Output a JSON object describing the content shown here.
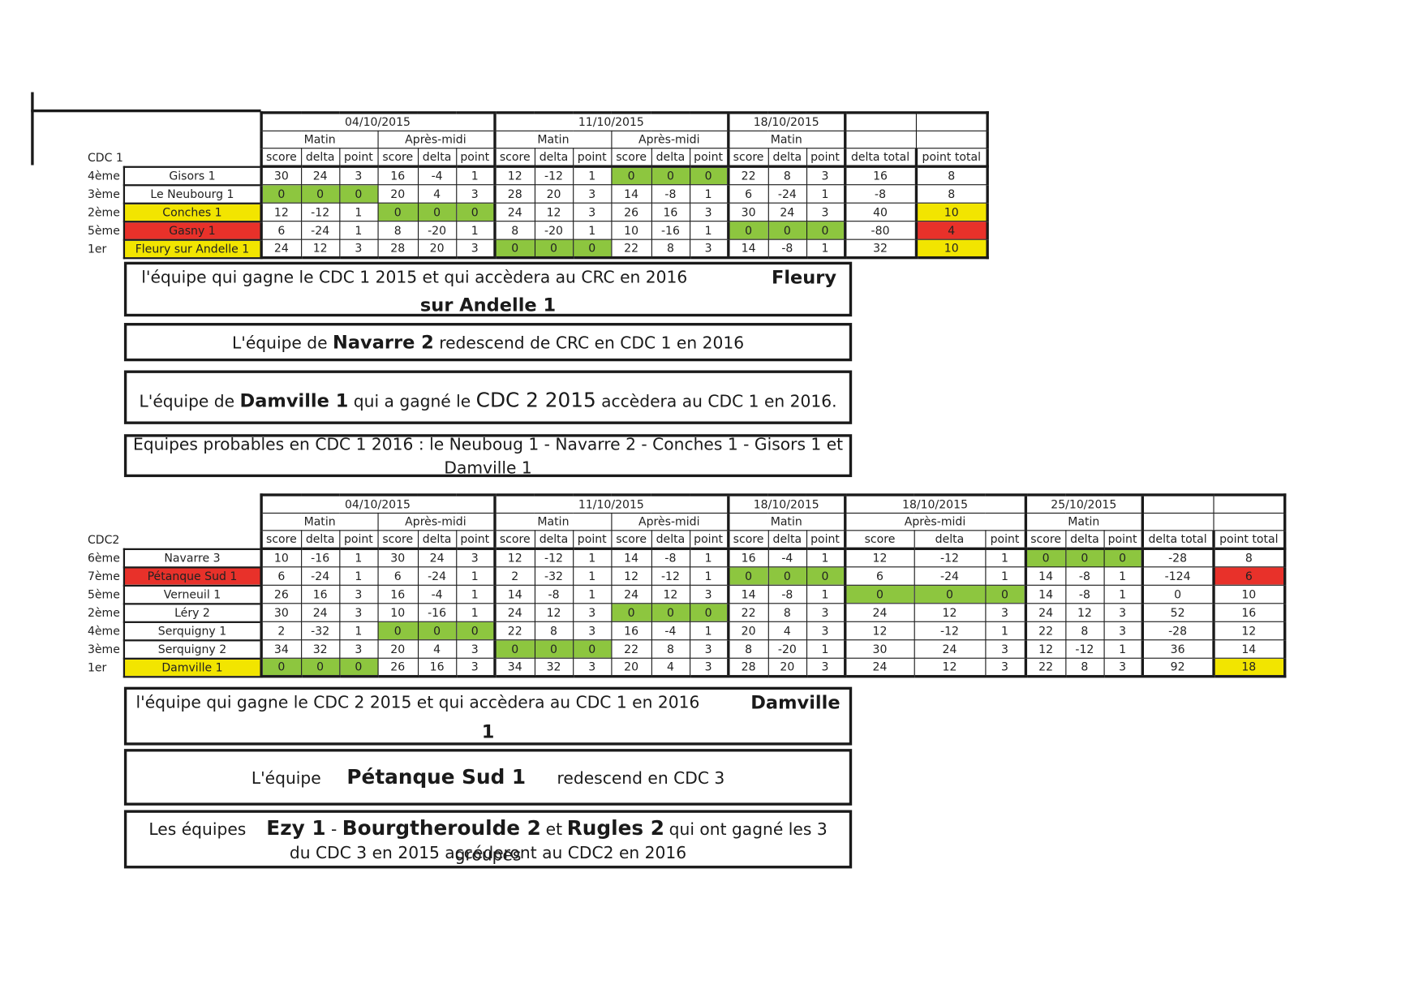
{
  "cdc1": {
    "label": "CDC 1",
    "dates": [
      "04/10/2015",
      "11/10/2015",
      "18/10/2015"
    ],
    "sessions": [
      "Matin",
      "Après-midi",
      "Matin",
      "Après-midi",
      "Matin"
    ],
    "col_headers": [
      "score",
      "delta",
      "point",
      "score",
      "delta",
      "point",
      "score",
      "delta",
      "point",
      "score",
      "delta",
      "point",
      "score",
      "delta",
      "point",
      "delta total",
      "point total"
    ],
    "rows": [
      {
        "rank": "4ème",
        "team": "Gisors 1",
        "values": [
          "30",
          "24",
          "3",
          "16",
          "-4",
          "1",
          "12",
          "-12",
          "1",
          "0",
          "0",
          "0",
          "22",
          "8",
          "3",
          "16",
          "8"
        ]
      },
      {
        "rank": "3ème",
        "team": "Le Neubourg 1",
        "values": [
          "0",
          "0",
          "0",
          "20",
          "4",
          "3",
          "28",
          "20",
          "3",
          "14",
          "-8",
          "1",
          "6",
          "-24",
          "1",
          "-8",
          "8"
        ]
      },
      {
        "rank": "2ème",
        "team": "Conches 1",
        "values": [
          "12",
          "-12",
          "1",
          "0",
          "0",
          "0",
          "24",
          "12",
          "3",
          "26",
          "16",
          "3",
          "30",
          "24",
          "3",
          "40",
          "10"
        ]
      },
      {
        "rank": "5ème",
        "team": "Gasny 1",
        "values": [
          "6",
          "-24",
          "1",
          "8",
          "-20",
          "1",
          "8",
          "-20",
          "1",
          "10",
          "-16",
          "1",
          "0",
          "0",
          "0",
          "-80",
          "4"
        ]
      },
      {
        "rank": "1er",
        "team": "Fleury sur Andelle 1",
        "values": [
          "24",
          "12",
          "3",
          "28",
          "20",
          "3",
          "0",
          "0",
          "0",
          "22",
          "8",
          "3",
          "14",
          "-8",
          "1",
          "32",
          "10"
        ]
      }
    ]
  },
  "cdc1_notes": {
    "winner_text": "l'équipe qui gagne le CDC 1 2015 et qui accèdera au CRC en 2016",
    "winner_name_1": "Fleury",
    "winner_name_2": "sur Andelle 1",
    "relegated_pre": "L'équipe de ",
    "relegated_name": "Navarre  2",
    "relegated_post": " redescend de CRC en CDC 1 en 2016",
    "promoted_pre": "L'équipe de ",
    "promoted_name": "Damville 1",
    "promoted_mid": "  qui a gagné le ",
    "promoted_league": "CDC 2 2015",
    "promoted_post": "   accèdera au CDC 1 en 2016.",
    "probable_line1": "Equipes probables en CDC 1  2016  :  le Neuboug 1 - Navarre 2 - Conches 1 - Gisors 1 et",
    "probable_line2": "Damville 1"
  },
  "cdc2": {
    "label": "CDC2",
    "dates": [
      "04/10/2015",
      "11/10/2015",
      "18/10/2015",
      "18/10/2015",
      "25/10/2015"
    ],
    "sessions": [
      "Matin",
      "Après-midi",
      "Matin",
      "Après-midi",
      "Matin",
      "Après-midi",
      "Matin"
    ],
    "col_headers": [
      "score",
      "delta",
      "point",
      "score",
      "delta",
      "point",
      "score",
      "delta",
      "point",
      "score",
      "delta",
      "point",
      "score",
      "delta",
      "point",
      "score",
      "delta",
      "point",
      "score",
      "delta",
      "point",
      "delta total",
      "point total"
    ],
    "rows": [
      {
        "rank": "6ème",
        "team": "Navarre 3",
        "values": [
          "10",
          "-16",
          "1",
          "30",
          "24",
          "3",
          "12",
          "-12",
          "1",
          "14",
          "-8",
          "1",
          "16",
          "-4",
          "1",
          "12",
          "-12",
          "1",
          "0",
          "0",
          "0",
          "-28",
          "8"
        ]
      },
      {
        "rank": "7ème",
        "team": "Pétanque Sud 1",
        "values": [
          "6",
          "-24",
          "1",
          "6",
          "-24",
          "1",
          "2",
          "-32",
          "1",
          "12",
          "-12",
          "1",
          "0",
          "0",
          "0",
          "6",
          "-24",
          "1",
          "14",
          "-8",
          "1",
          "-124",
          "6"
        ]
      },
      {
        "rank": "5ème",
        "team": "Verneuil 1",
        "values": [
          "26",
          "16",
          "3",
          "16",
          "-4",
          "1",
          "14",
          "-8",
          "1",
          "24",
          "12",
          "3",
          "14",
          "-8",
          "1",
          "0",
          "0",
          "0",
          "14",
          "-8",
          "1",
          "0",
          "10"
        ]
      },
      {
        "rank": "2ème",
        "team": "Léry 2",
        "values": [
          "30",
          "24",
          "3",
          "10",
          "-16",
          "1",
          "24",
          "12",
          "3",
          "0",
          "0",
          "0",
          "22",
          "8",
          "3",
          "24",
          "12",
          "3",
          "24",
          "12",
          "3",
          "52",
          "16"
        ]
      },
      {
        "rank": "4ème",
        "team": "Serquigny 1",
        "values": [
          "2",
          "-32",
          "1",
          "0",
          "0",
          "0",
          "22",
          "8",
          "3",
          "16",
          "-4",
          "1",
          "20",
          "4",
          "3",
          "12",
          "-12",
          "1",
          "22",
          "8",
          "3",
          "-28",
          "12"
        ]
      },
      {
        "rank": "3ème",
        "team": "Serquigny 2",
        "values": [
          "34",
          "32",
          "3",
          "20",
          "4",
          "3",
          "0",
          "0",
          "0",
          "22",
          "8",
          "3",
          "8",
          "-20",
          "1",
          "30",
          "24",
          "3",
          "12",
          "-12",
          "1",
          "36",
          "14"
        ]
      },
      {
        "rank": "1er",
        "team": "Damville 1",
        "values": [
          "0",
          "0",
          "0",
          "26",
          "16",
          "3",
          "34",
          "32",
          "3",
          "20",
          "4",
          "3",
          "28",
          "20",
          "3",
          "24",
          "12",
          "3",
          "22",
          "8",
          "3",
          "92",
          "18"
        ]
      }
    ]
  },
  "cdc2_notes": {
    "winner_text": "l'équipe qui gagne le CDC 2 2015 et qui accèdera au CDC 1 en 2016",
    "winner_name_1": "Damville",
    "winner_name_2": "1",
    "relegated_pre": "L'équipe",
    "relegated_name": "Pétanque Sud 1",
    "relegated_post": "redescend en CDC 3",
    "promo_pre": "Les équipes",
    "promo_team1": "Ezy 1",
    "promo_sep1": " - ",
    "promo_team2": "Bourgtheroulde 2",
    "promo_sep2": "et",
    "promo_team3": "Rugles 2",
    "promo_post": "qui ont gagné les 3 groupes",
    "promo_line2": "du CDC 3 en 2015  accéderont au CDC2  en  2016"
  },
  "colors": {
    "zero_highlight": "#8dc63f",
    "last_place": "#e8312a",
    "first_place": "#f2e500"
  }
}
